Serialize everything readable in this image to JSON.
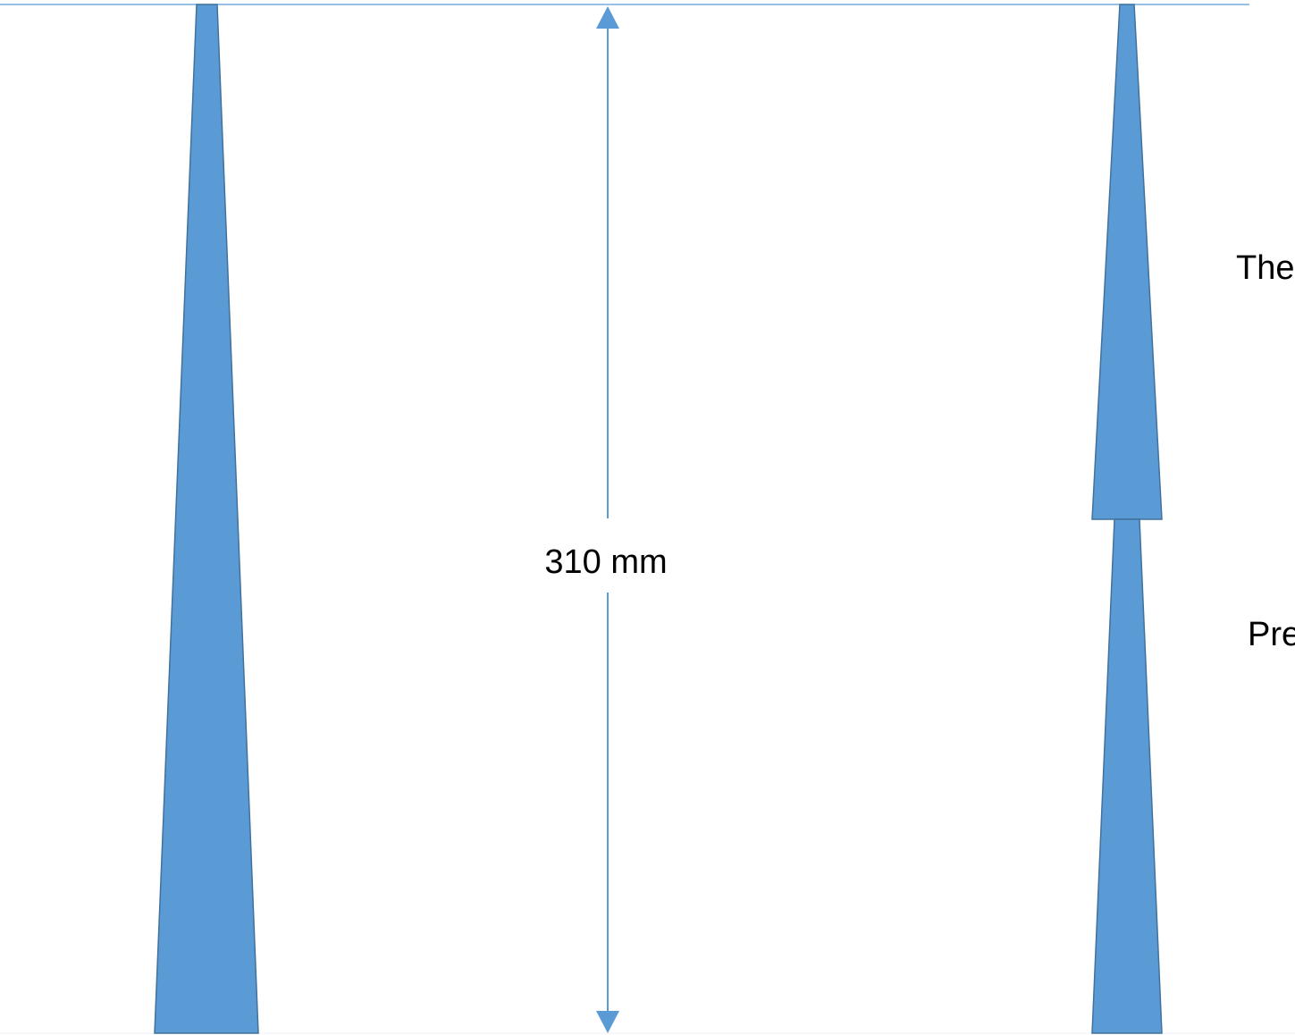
{
  "diagram": {
    "dimension_label": "310 mm",
    "right_labels": {
      "upper": "The",
      "lower": "Pre"
    }
  },
  "colors": {
    "fill": "#5b9bd5",
    "stroke": "#41719c",
    "guide_line": "#5b9bd5"
  }
}
